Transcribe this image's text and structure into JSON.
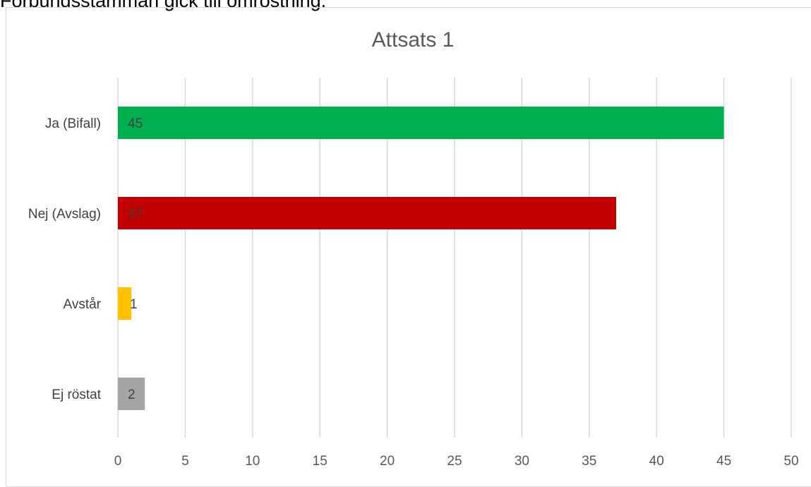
{
  "intro_text": "Förbundsstämman gick till omröstning.",
  "chart_data": {
    "type": "bar",
    "orientation": "horizontal",
    "title": "Attsats 1",
    "categories": [
      "Ja (Bifall)",
      "Nej (Avslag)",
      "Avstår",
      "Ej röstat"
    ],
    "values": [
      45,
      37,
      1,
      2
    ],
    "colors": [
      "#00b050",
      "#c00000",
      "#ffc000",
      "#a5a5a5"
    ],
    "xlim": [
      0,
      50
    ],
    "xticks": [
      0,
      5,
      10,
      15,
      20,
      25,
      30,
      35,
      40,
      45,
      50
    ],
    "xlabel": "",
    "ylabel": "",
    "grid": true,
    "gridline_color": "#d9d9d9",
    "data_labels": true,
    "legend": "none"
  }
}
